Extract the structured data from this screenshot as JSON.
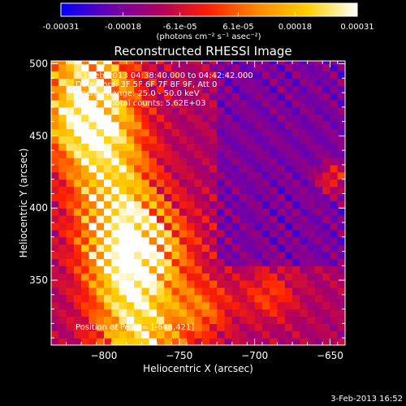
{
  "chart_data": {
    "type": "heatmap",
    "title": "Reconstructed RHESSI Image",
    "xlabel": "Heliocentric X (arcsec)",
    "ylabel": "Heliocentric Y (arcsec)",
    "xlim": [
      -835,
      -640
    ],
    "ylim": [
      305,
      502
    ],
    "xticks": [
      -800,
      -750,
      -700,
      -650
    ],
    "yticks": [
      350,
      400,
      450,
      500
    ],
    "colorbar": {
      "label": "(photons cm⁻² s⁻¹ asec⁻²)",
      "range": [
        -0.00031,
        0.00031
      ],
      "tick_values": [
        -0.00031,
        -0.00018,
        -6.1e-05,
        6.1e-05,
        0.00018,
        0.00031
      ],
      "tick_labels": [
        "-0.00031",
        "-0.00018",
        "-6.1e-05",
        "6.1e-05",
        "0.00018",
        "0.00031"
      ],
      "colors": [
        "#0000ff",
        "#6a00b0",
        "#b00060",
        "#ff2000",
        "#ff8a00",
        "#ffd000",
        "#ffffff"
      ]
    },
    "annotations": {
      "time_range": "3-Feb-2013 04:38:40.000 to 04:42:42.000",
      "detectors": "Detectors: 3F 5F 6F 7F 8F 9F, Att 0",
      "energy": "Energy Range: 25.0 - 50.0 keV",
      "clean": "Clean     Total counts: 5.62E+03",
      "peak": "Position of Peak = [-648,421]"
    }
  },
  "footer_date": "3-Feb-2013 16:52"
}
